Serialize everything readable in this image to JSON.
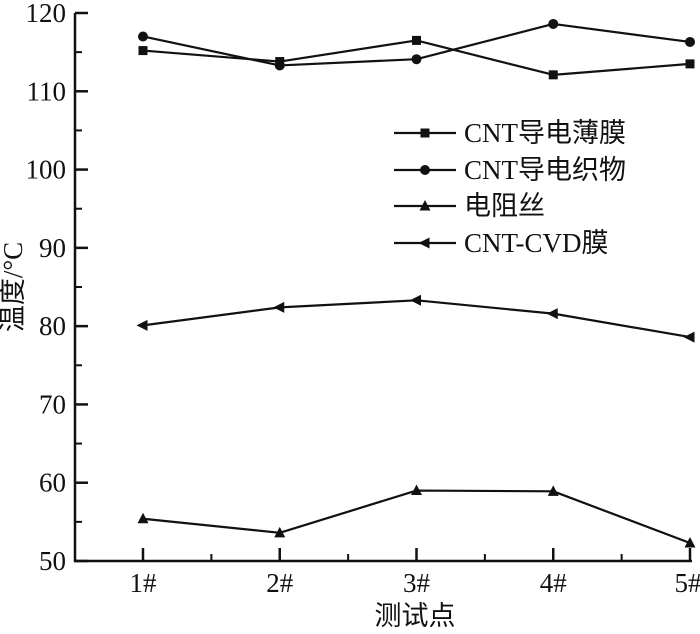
{
  "chart_data": {
    "type": "line",
    "title": "",
    "xlabel": "测试点",
    "ylabel": "温度/°C",
    "categories": [
      "1#",
      "2#",
      "3#",
      "4#",
      "5#"
    ],
    "series": [
      {
        "name": "CNT导电薄膜",
        "marker": "square",
        "values": [
          115.2,
          113.8,
          116.5,
          112.1,
          113.5
        ]
      },
      {
        "name": "CNT导电织物",
        "marker": "circle",
        "values": [
          117.0,
          113.3,
          114.1,
          118.6,
          116.3
        ]
      },
      {
        "name": "电阻丝",
        "marker": "triangle-up",
        "values": [
          55.4,
          53.6,
          59.0,
          58.9,
          52.3
        ]
      },
      {
        "name": "CNT-CVD膜",
        "marker": "triangle-left",
        "values": [
          80.1,
          82.4,
          83.3,
          81.6,
          78.6
        ]
      }
    ],
    "ylim": [
      50,
      120
    ],
    "yticks": [
      50,
      60,
      70,
      80,
      90,
      100,
      110,
      120
    ],
    "ytick_step": 10,
    "minor_ticks": true,
    "grid": false,
    "legend_position": "center-right",
    "line_color": "#111111",
    "background_color": "#ffffff"
  }
}
